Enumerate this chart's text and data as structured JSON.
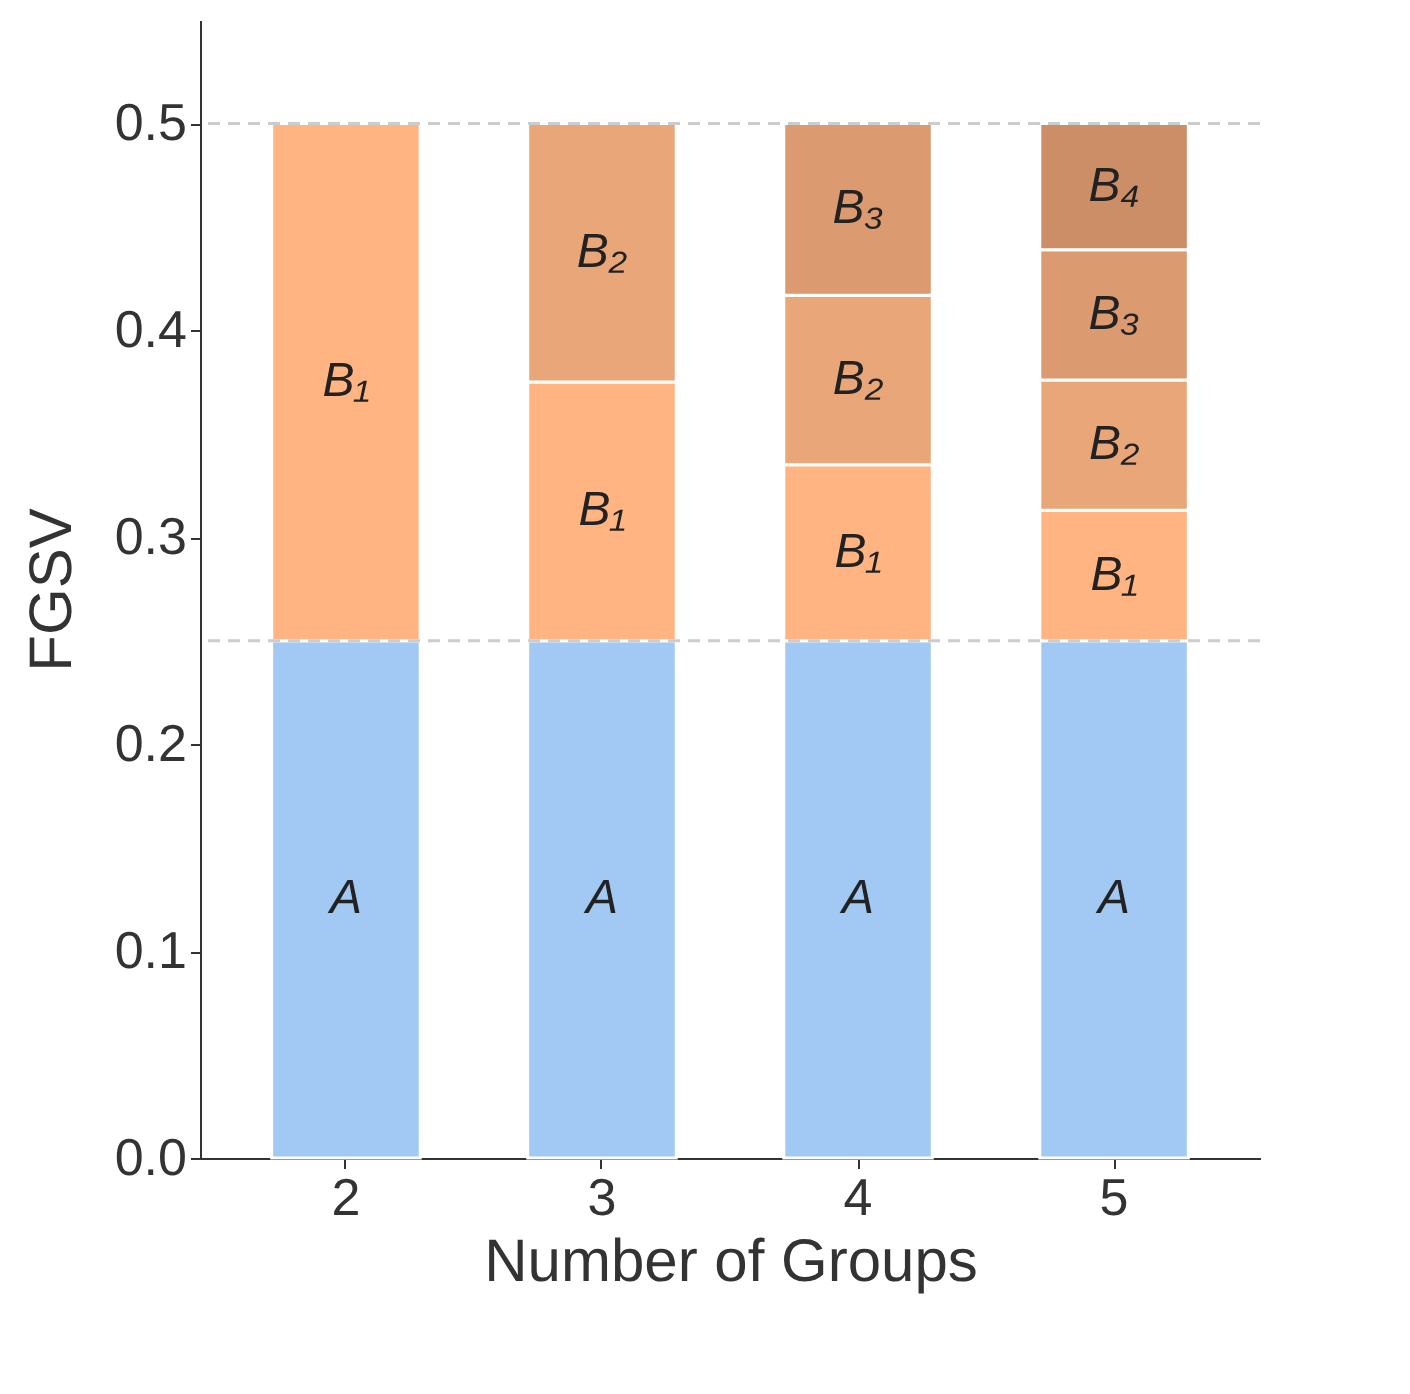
{
  "chart_data": {
    "type": "bar",
    "stacked": true,
    "xlabel": "Number of Groups",
    "ylabel": "FGSV",
    "categories": [
      "2",
      "3",
      "4",
      "5"
    ],
    "series": [
      {
        "name": "A",
        "color": "#a1c9f4",
        "values": [
          0.25,
          0.25,
          0.25,
          0.25
        ]
      },
      {
        "name": "B₁",
        "color": "#ffb482",
        "values": [
          0.25,
          0.125,
          0.085,
          0.063
        ]
      },
      {
        "name": "B₂",
        "color": "#e9a679",
        "values": [
          null,
          0.125,
          0.082,
          0.063
        ]
      },
      {
        "name": "B₃",
        "color": "#db9a6f",
        "values": [
          null,
          null,
          0.083,
          0.063
        ]
      },
      {
        "name": "B₄",
        "color": "#cb8e66",
        "values": [
          null,
          null,
          null,
          0.061
        ]
      }
    ],
    "ylim": [
      0,
      0.55
    ],
    "yticks": [
      {
        "value": 0,
        "label": "0.0"
      },
      0.1,
      0.2,
      0.3,
      0.4,
      0.5
    ],
    "grid": false,
    "legend": false,
    "ref_lines": [
      {
        "axis": "y",
        "value": 0.25,
        "color": "#cccccc",
        "line_style": "dashed"
      },
      {
        "axis": "y",
        "value": 0.5,
        "color": "#cccccc",
        "line_style": "dashed"
      }
    ]
  }
}
